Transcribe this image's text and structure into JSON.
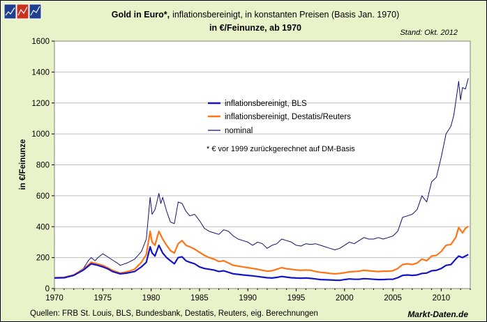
{
  "logo": {
    "name": "markt-daten-logo"
  },
  "header": {
    "title_bold": "Gold in Euro*,",
    "title_rest": "inflationsbereinigt, in konstanten Preisen (Basis Jan. 1970)",
    "subtitle": "in €/Feinunze, ab 1970",
    "stand": "Stand: Okt. 2012"
  },
  "footer": {
    "sources": "Quellen: FRB St. Louis, BLS, Bundesbank, Destatis, Reuters, eig. Berechnungen",
    "brand": "Markt-Daten.de"
  },
  "chart_data": {
    "type": "line",
    "ylabel": "in €/Feinunze",
    "xlabel": "",
    "xlim": [
      1970,
      2013
    ],
    "ylim": [
      0,
      1600
    ],
    "x_ticks": [
      "1970",
      "1975",
      "1980",
      "1985",
      "1990",
      "1995",
      "2000",
      "2005",
      "2010"
    ],
    "y_ticks": [
      "0",
      "200",
      "400",
      "600",
      "800",
      "1000",
      "1200",
      "1400",
      "1600"
    ],
    "grid": true,
    "legend_position": "center",
    "note": "* € vor 1999 zurückgerechnet auf DM-Basis",
    "colors": {
      "plot_bg": "#ffffff",
      "frame_bg": "#e9f3c9",
      "grid": "#bfbfbf"
    },
    "series": [
      {
        "name": "inflationsbereinigt, BLS",
        "color": "#1414c8",
        "width": 2.2,
        "points": [
          [
            1970.0,
            68
          ],
          [
            1971.0,
            70
          ],
          [
            1972.0,
            85
          ],
          [
            1973.0,
            120
          ],
          [
            1973.8,
            160
          ],
          [
            1974.5,
            150
          ],
          [
            1975.0,
            140
          ],
          [
            1975.5,
            128
          ],
          [
            1976.0,
            110
          ],
          [
            1976.8,
            95
          ],
          [
            1977.5,
            100
          ],
          [
            1978.3,
            110
          ],
          [
            1979.0,
            140
          ],
          [
            1979.5,
            170
          ],
          [
            1979.9,
            270
          ],
          [
            1980.1,
            230
          ],
          [
            1980.4,
            210
          ],
          [
            1980.8,
            280
          ],
          [
            1981.2,
            230
          ],
          [
            1981.6,
            200
          ],
          [
            1982.0,
            180
          ],
          [
            1982.4,
            160
          ],
          [
            1982.8,
            200
          ],
          [
            1983.2,
            205
          ],
          [
            1983.6,
            180
          ],
          [
            1984.0,
            170
          ],
          [
            1984.5,
            160
          ],
          [
            1985.0,
            140
          ],
          [
            1985.5,
            130
          ],
          [
            1986.0,
            125
          ],
          [
            1986.5,
            120
          ],
          [
            1987.0,
            110
          ],
          [
            1987.5,
            115
          ],
          [
            1988.0,
            105
          ],
          [
            1988.5,
            95
          ],
          [
            1989.0,
            92
          ],
          [
            1989.5,
            88
          ],
          [
            1990.0,
            85
          ],
          [
            1990.5,
            82
          ],
          [
            1991.0,
            78
          ],
          [
            1991.5,
            74
          ],
          [
            1992.0,
            70
          ],
          [
            1992.5,
            68
          ],
          [
            1993.0,
            72
          ],
          [
            1993.5,
            78
          ],
          [
            1994.0,
            74
          ],
          [
            1994.5,
            70
          ],
          [
            1995.0,
            68
          ],
          [
            1995.5,
            67
          ],
          [
            1996.0,
            68
          ],
          [
            1996.5,
            66
          ],
          [
            1997.0,
            62
          ],
          [
            1997.5,
            58
          ],
          [
            1998.0,
            57
          ],
          [
            1998.5,
            56
          ],
          [
            1999.0,
            54
          ],
          [
            1999.5,
            53
          ],
          [
            2000.0,
            58
          ],
          [
            2000.5,
            62
          ],
          [
            2001.0,
            60
          ],
          [
            2001.5,
            60
          ],
          [
            2002.0,
            64
          ],
          [
            2002.5,
            62
          ],
          [
            2003.0,
            60
          ],
          [
            2003.5,
            58
          ],
          [
            2004.0,
            58
          ],
          [
            2004.5,
            60
          ],
          [
            2005.0,
            60
          ],
          [
            2005.5,
            70
          ],
          [
            2006.0,
            85
          ],
          [
            2006.5,
            88
          ],
          [
            2007.0,
            85
          ],
          [
            2007.5,
            88
          ],
          [
            2008.0,
            98
          ],
          [
            2008.5,
            100
          ],
          [
            2009.0,
            115
          ],
          [
            2009.5,
            118
          ],
          [
            2010.0,
            130
          ],
          [
            2010.5,
            150
          ],
          [
            2011.0,
            155
          ],
          [
            2011.5,
            190
          ],
          [
            2011.8,
            210
          ],
          [
            2012.2,
            200
          ],
          [
            2012.5,
            210
          ],
          [
            2012.8,
            220
          ]
        ]
      },
      {
        "name": "inflationsbereinigt, Destatis/Reuters",
        "color": "#ff7414",
        "width": 2.2,
        "points": [
          [
            1970.0,
            70
          ],
          [
            1971.0,
            72
          ],
          [
            1972.0,
            88
          ],
          [
            1973.0,
            125
          ],
          [
            1973.8,
            170
          ],
          [
            1974.5,
            158
          ],
          [
            1975.0,
            150
          ],
          [
            1975.5,
            135
          ],
          [
            1976.0,
            118
          ],
          [
            1976.8,
            100
          ],
          [
            1977.5,
            108
          ],
          [
            1978.3,
            125
          ],
          [
            1979.0,
            170
          ],
          [
            1979.5,
            220
          ],
          [
            1979.9,
            370
          ],
          [
            1980.1,
            300
          ],
          [
            1980.4,
            280
          ],
          [
            1980.8,
            370
          ],
          [
            1981.2,
            320
          ],
          [
            1981.6,
            280
          ],
          [
            1982.0,
            245
          ],
          [
            1982.4,
            230
          ],
          [
            1982.8,
            290
          ],
          [
            1983.2,
            310
          ],
          [
            1983.6,
            280
          ],
          [
            1984.0,
            270
          ],
          [
            1984.5,
            255
          ],
          [
            1985.0,
            235
          ],
          [
            1985.5,
            215
          ],
          [
            1986.0,
            200
          ],
          [
            1986.5,
            190
          ],
          [
            1987.0,
            175
          ],
          [
            1987.5,
            180
          ],
          [
            1988.0,
            165
          ],
          [
            1988.5,
            150
          ],
          [
            1989.0,
            145
          ],
          [
            1989.5,
            140
          ],
          [
            1990.0,
            135
          ],
          [
            1990.5,
            130
          ],
          [
            1991.0,
            125
          ],
          [
            1991.5,
            118
          ],
          [
            1992.0,
            112
          ],
          [
            1992.5,
            115
          ],
          [
            1993.0,
            125
          ],
          [
            1993.5,
            135
          ],
          [
            1994.0,
            128
          ],
          [
            1994.5,
            125
          ],
          [
            1995.0,
            120
          ],
          [
            1995.5,
            118
          ],
          [
            1996.0,
            120
          ],
          [
            1996.5,
            118
          ],
          [
            1997.0,
            110
          ],
          [
            1997.5,
            105
          ],
          [
            1998.0,
            102
          ],
          [
            1998.5,
            98
          ],
          [
            1999.0,
            95
          ],
          [
            1999.5,
            98
          ],
          [
            2000.0,
            102
          ],
          [
            2000.5,
            108
          ],
          [
            2001.0,
            110
          ],
          [
            2001.5,
            112
          ],
          [
            2002.0,
            118
          ],
          [
            2002.5,
            115
          ],
          [
            2003.0,
            112
          ],
          [
            2003.5,
            110
          ],
          [
            2004.0,
            112
          ],
          [
            2004.5,
            112
          ],
          [
            2005.0,
            115
          ],
          [
            2005.5,
            130
          ],
          [
            2006.0,
            155
          ],
          [
            2006.5,
            160
          ],
          [
            2007.0,
            155
          ],
          [
            2007.5,
            165
          ],
          [
            2008.0,
            190
          ],
          [
            2008.5,
            180
          ],
          [
            2009.0,
            210
          ],
          [
            2009.5,
            215
          ],
          [
            2010.0,
            240
          ],
          [
            2010.5,
            280
          ],
          [
            2011.0,
            285
          ],
          [
            2011.5,
            330
          ],
          [
            2011.8,
            395
          ],
          [
            2012.2,
            360
          ],
          [
            2012.5,
            390
          ],
          [
            2012.8,
            402
          ]
        ]
      },
      {
        "name": "nominal",
        "color": "#10106e",
        "width": 1.0,
        "points": [
          [
            1970.0,
            68
          ],
          [
            1971.0,
            72
          ],
          [
            1972.0,
            90
          ],
          [
            1973.0,
            130
          ],
          [
            1973.5,
            180
          ],
          [
            1973.8,
            200
          ],
          [
            1974.2,
            180
          ],
          [
            1974.5,
            200
          ],
          [
            1975.0,
            225
          ],
          [
            1975.5,
            205
          ],
          [
            1976.0,
            185
          ],
          [
            1976.5,
            165
          ],
          [
            1976.8,
            150
          ],
          [
            1977.5,
            165
          ],
          [
            1978.3,
            190
          ],
          [
            1979.0,
            240
          ],
          [
            1979.5,
            320
          ],
          [
            1979.9,
            590
          ],
          [
            1980.1,
            480
          ],
          [
            1980.4,
            510
          ],
          [
            1980.6,
            560
          ],
          [
            1980.8,
            615
          ],
          [
            1981.0,
            550
          ],
          [
            1981.2,
            590
          ],
          [
            1981.6,
            500
          ],
          [
            1982.0,
            430
          ],
          [
            1982.4,
            420
          ],
          [
            1982.8,
            560
          ],
          [
            1983.2,
            550
          ],
          [
            1983.6,
            500
          ],
          [
            1984.0,
            470
          ],
          [
            1984.5,
            480
          ],
          [
            1985.0,
            440
          ],
          [
            1985.5,
            390
          ],
          [
            1986.0,
            370
          ],
          [
            1986.5,
            360
          ],
          [
            1987.0,
            350
          ],
          [
            1987.5,
            380
          ],
          [
            1988.0,
            370
          ],
          [
            1988.5,
            340
          ],
          [
            1989.0,
            320
          ],
          [
            1989.5,
            310
          ],
          [
            1990.0,
            300
          ],
          [
            1990.5,
            280
          ],
          [
            1991.0,
            300
          ],
          [
            1991.5,
            290
          ],
          [
            1992.0,
            260
          ],
          [
            1992.5,
            280
          ],
          [
            1993.0,
            290
          ],
          [
            1993.5,
            320
          ],
          [
            1994.0,
            310
          ],
          [
            1994.5,
            300
          ],
          [
            1995.0,
            280
          ],
          [
            1995.5,
            275
          ],
          [
            1996.0,
            290
          ],
          [
            1996.5,
            285
          ],
          [
            1997.0,
            290
          ],
          [
            1997.5,
            280
          ],
          [
            1998.0,
            270
          ],
          [
            1998.5,
            260
          ],
          [
            1999.0,
            250
          ],
          [
            1999.5,
            260
          ],
          [
            2000.0,
            280
          ],
          [
            2000.5,
            300
          ],
          [
            2001.0,
            290
          ],
          [
            2001.5,
            310
          ],
          [
            2002.0,
            330
          ],
          [
            2002.5,
            320
          ],
          [
            2003.0,
            320
          ],
          [
            2003.5,
            330
          ],
          [
            2004.0,
            320
          ],
          [
            2004.5,
            330
          ],
          [
            2005.0,
            340
          ],
          [
            2005.5,
            370
          ],
          [
            2006.0,
            460
          ],
          [
            2006.5,
            470
          ],
          [
            2007.0,
            480
          ],
          [
            2007.5,
            510
          ],
          [
            2008.0,
            600
          ],
          [
            2008.5,
            560
          ],
          [
            2009.0,
            690
          ],
          [
            2009.5,
            720
          ],
          [
            2010.0,
            850
          ],
          [
            2010.5,
            1000
          ],
          [
            2011.0,
            1050
          ],
          [
            2011.3,
            1120
          ],
          [
            2011.6,
            1250
          ],
          [
            2011.8,
            1340
          ],
          [
            2012.0,
            1220
          ],
          [
            2012.2,
            1300
          ],
          [
            2012.5,
            1290
          ],
          [
            2012.8,
            1360
          ]
        ]
      }
    ]
  }
}
